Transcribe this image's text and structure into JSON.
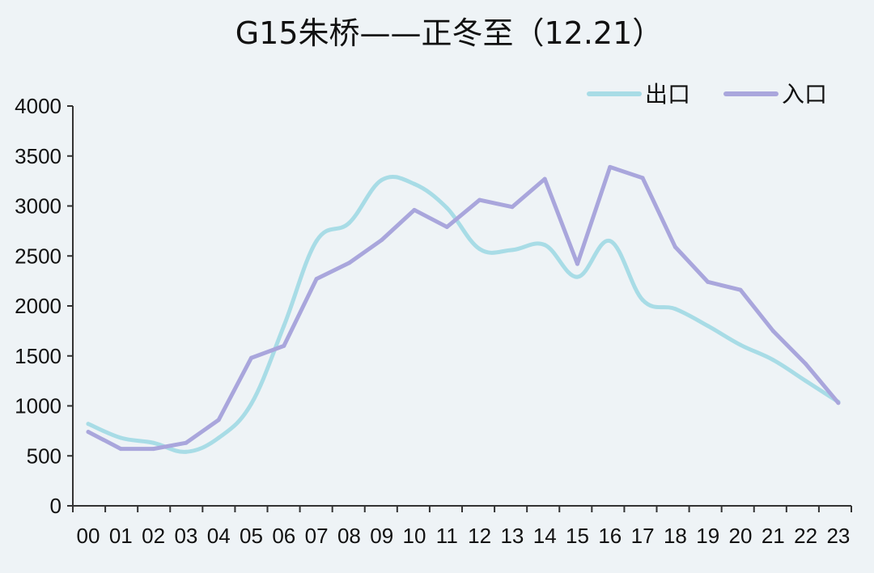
{
  "chart_data": {
    "type": "line",
    "title": "G15朱桥——正冬至（12.21）",
    "categories": [
      "00",
      "01",
      "02",
      "03",
      "04",
      "05",
      "06",
      "07",
      "08",
      "09",
      "10",
      "11",
      "12",
      "13",
      "14",
      "15",
      "16",
      "17",
      "18",
      "19",
      "20",
      "21",
      "22",
      "23"
    ],
    "series": [
      {
        "name": "出口",
        "color": "#a8dce6",
        "values": [
          820,
          680,
          630,
          540,
          680,
          1020,
          1800,
          2650,
          2830,
          3260,
          3220,
          2980,
          2570,
          2560,
          2610,
          2290,
          2650,
          2060,
          1970,
          1800,
          1610,
          1460,
          1250,
          1040
        ]
      },
      {
        "name": "入口",
        "color": "#a9a6dc",
        "values": [
          740,
          570,
          570,
          630,
          860,
          1480,
          1600,
          2270,
          2430,
          2660,
          2960,
          2790,
          3060,
          2990,
          3270,
          2420,
          3390,
          3280,
          2590,
          2240,
          2160,
          1750,
          1420,
          1030
        ]
      }
    ],
    "yticks": [
      0,
      500,
      1000,
      1500,
      2000,
      2500,
      3000,
      3500,
      4000
    ],
    "ylim": [
      0,
      4000
    ],
    "xlabel": "",
    "ylabel": "",
    "grid": false,
    "legend": "top-right"
  }
}
